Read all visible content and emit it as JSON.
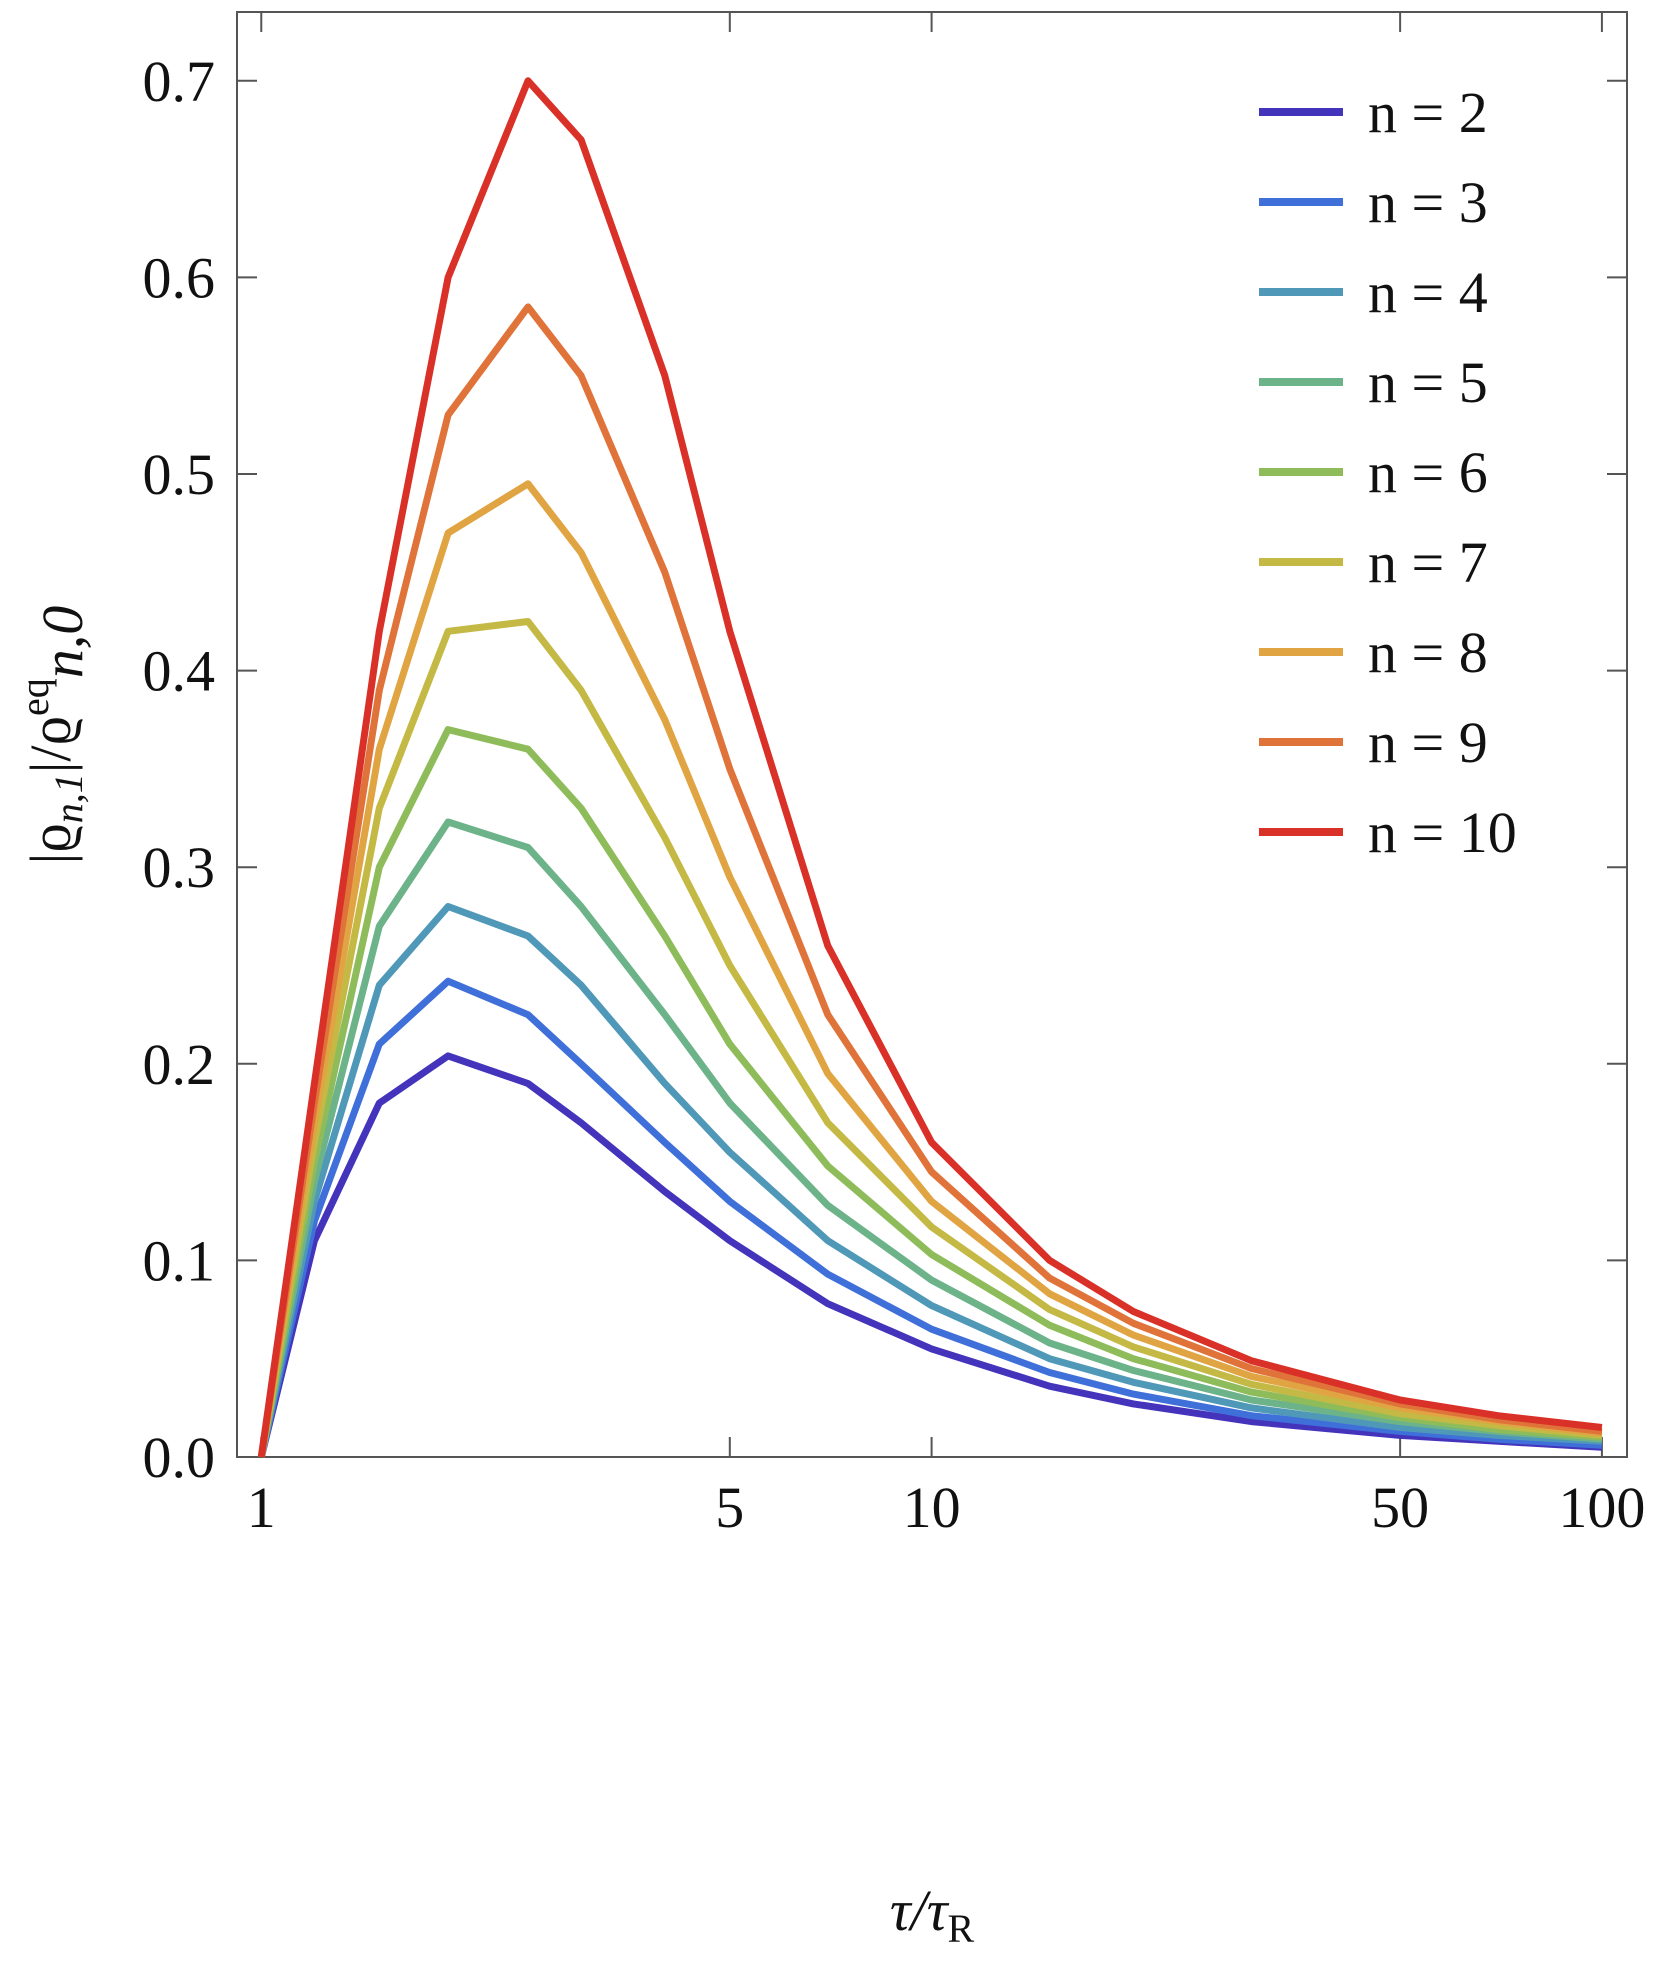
{
  "chart_data": {
    "type": "line",
    "xlabel": {
      "parts": [
        "τ/τ",
        "R"
      ]
    },
    "ylabel": {
      "parts": [
        "|ϱ",
        "n,1",
        "|/ϱ",
        "eq",
        "n,0"
      ]
    },
    "x": [
      1,
      1.2,
      1.5,
      1.9,
      2.5,
      3,
      4,
      5,
      7,
      10,
      15,
      20,
      30,
      50,
      70,
      100
    ],
    "xscale": "log",
    "xlim": [
      0.92,
      109
    ],
    "xticks": [
      1,
      5,
      10,
      50,
      100
    ],
    "ylim": [
      0,
      0.735
    ],
    "yticks": [
      {
        "value": 0,
        "label": "0.0"
      },
      0.1,
      0.2,
      0.3,
      0.4,
      0.5,
      0.6,
      0.7
    ],
    "legend": "upper right",
    "series": [
      {
        "name": "n = 2",
        "color": "#4433bb",
        "values": [
          0,
          0.11,
          0.18,
          0.204,
          0.19,
          0.17,
          0.135,
          0.11,
          0.078,
          0.055,
          0.036,
          0.027,
          0.018,
          0.011,
          0.008,
          0.005
        ]
      },
      {
        "name": "n = 3",
        "color": "#3f6fd8",
        "values": [
          0,
          0.12,
          0.21,
          0.242,
          0.225,
          0.2,
          0.16,
          0.13,
          0.093,
          0.065,
          0.043,
          0.032,
          0.021,
          0.013,
          0.009,
          0.006
        ]
      },
      {
        "name": "n = 4",
        "color": "#4f98b8",
        "values": [
          0,
          0.13,
          0.24,
          0.28,
          0.265,
          0.24,
          0.19,
          0.155,
          0.11,
          0.077,
          0.05,
          0.038,
          0.025,
          0.015,
          0.011,
          0.008
        ]
      },
      {
        "name": "n = 5",
        "color": "#6db38a",
        "values": [
          0,
          0.14,
          0.27,
          0.323,
          0.31,
          0.28,
          0.225,
          0.18,
          0.128,
          0.09,
          0.058,
          0.044,
          0.029,
          0.018,
          0.013,
          0.009
        ]
      },
      {
        "name": "n = 6",
        "color": "#8fbc5a",
        "values": [
          0,
          0.15,
          0.3,
          0.37,
          0.36,
          0.33,
          0.265,
          0.21,
          0.148,
          0.103,
          0.067,
          0.05,
          0.033,
          0.02,
          0.014,
          0.01
        ]
      },
      {
        "name": "n = 7",
        "color": "#c4b945",
        "values": [
          0,
          0.16,
          0.33,
          0.42,
          0.425,
          0.39,
          0.315,
          0.25,
          0.17,
          0.117,
          0.075,
          0.056,
          0.037,
          0.022,
          0.016,
          0.011
        ]
      },
      {
        "name": "n = 8",
        "color": "#e0a542",
        "values": [
          0,
          0.17,
          0.36,
          0.47,
          0.495,
          0.46,
          0.375,
          0.295,
          0.195,
          0.13,
          0.083,
          0.062,
          0.041,
          0.025,
          0.018,
          0.012
        ]
      },
      {
        "name": "n = 9",
        "color": "#e0733a",
        "values": [
          0,
          0.18,
          0.39,
          0.53,
          0.585,
          0.55,
          0.45,
          0.35,
          0.225,
          0.145,
          0.091,
          0.068,
          0.045,
          0.027,
          0.019,
          0.013
        ]
      },
      {
        "name": "n = 10",
        "color": "#d93027",
        "values": [
          0,
          0.19,
          0.42,
          0.6,
          0.7,
          0.67,
          0.55,
          0.42,
          0.26,
          0.16,
          0.1,
          0.074,
          0.049,
          0.029,
          0.021,
          0.015
        ]
      }
    ]
  }
}
